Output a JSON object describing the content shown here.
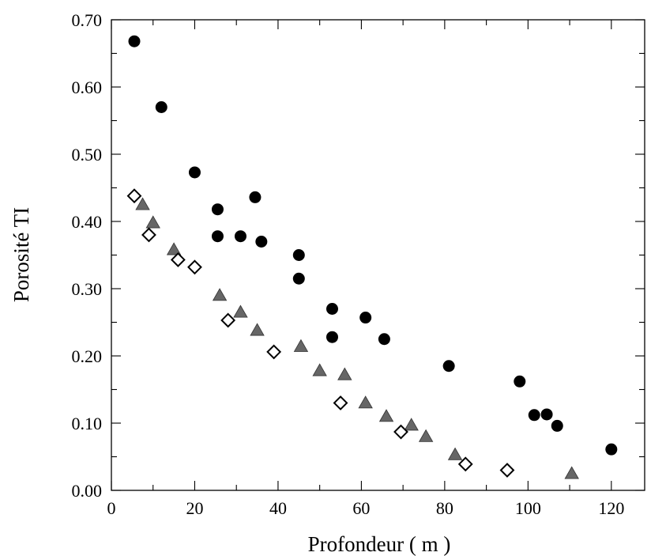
{
  "chart_data": {
    "type": "scatter",
    "title": "",
    "xlabel": "Profondeur ( m )",
    "ylabel": "Porosité TI",
    "xlim": [
      0,
      128
    ],
    "ylim": [
      0,
      0.7
    ],
    "x_ticks": [
      0,
      20,
      40,
      60,
      80,
      100,
      120
    ],
    "x_tick_labels": [
      "0",
      "20",
      "40",
      "60",
      "80",
      "100",
      "120"
    ],
    "y_ticks": [
      0,
      0.1,
      0.2,
      0.3,
      0.4,
      0.5,
      0.6,
      0.7
    ],
    "y_tick_labels": [
      "0.00",
      "0.10",
      "0.20",
      "0.30",
      "0.40",
      "0.50",
      "0.60",
      "0.70"
    ],
    "grid": false,
    "legend": "none",
    "series": [
      {
        "marker": "circle",
        "color": "#000000",
        "points": [
          {
            "x": 5.5,
            "y": 0.668
          },
          {
            "x": 12,
            "y": 0.57
          },
          {
            "x": 20,
            "y": 0.473
          },
          {
            "x": 25.5,
            "y": 0.418
          },
          {
            "x": 25.5,
            "y": 0.378
          },
          {
            "x": 31,
            "y": 0.378
          },
          {
            "x": 34.5,
            "y": 0.436
          },
          {
            "x": 36,
            "y": 0.37
          },
          {
            "x": 45,
            "y": 0.35
          },
          {
            "x": 45,
            "y": 0.315
          },
          {
            "x": 53,
            "y": 0.27
          },
          {
            "x": 53,
            "y": 0.228
          },
          {
            "x": 61,
            "y": 0.257
          },
          {
            "x": 65.5,
            "y": 0.225
          },
          {
            "x": 81,
            "y": 0.185
          },
          {
            "x": 98,
            "y": 0.162
          },
          {
            "x": 101.5,
            "y": 0.112
          },
          {
            "x": 104.5,
            "y": 0.113
          },
          {
            "x": 107,
            "y": 0.096
          },
          {
            "x": 120,
            "y": 0.061
          }
        ]
      },
      {
        "marker": "triangle",
        "color": "#666666",
        "points": [
          {
            "x": 7.5,
            "y": 0.425
          },
          {
            "x": 10,
            "y": 0.398
          },
          {
            "x": 15,
            "y": 0.358
          },
          {
            "x": 26,
            "y": 0.29
          },
          {
            "x": 31,
            "y": 0.265
          },
          {
            "x": 35,
            "y": 0.238
          },
          {
            "x": 45.5,
            "y": 0.214
          },
          {
            "x": 50,
            "y": 0.178
          },
          {
            "x": 56,
            "y": 0.172
          },
          {
            "x": 61,
            "y": 0.13
          },
          {
            "x": 66,
            "y": 0.11
          },
          {
            "x": 72,
            "y": 0.097
          },
          {
            "x": 75.5,
            "y": 0.08
          },
          {
            "x": 82.5,
            "y": 0.053
          },
          {
            "x": 110.5,
            "y": 0.025
          }
        ]
      },
      {
        "marker": "diamond-open",
        "color": "#000000",
        "points": [
          {
            "x": 5.5,
            "y": 0.438
          },
          {
            "x": 9,
            "y": 0.38
          },
          {
            "x": 16,
            "y": 0.343
          },
          {
            "x": 20,
            "y": 0.332
          },
          {
            "x": 28,
            "y": 0.253
          },
          {
            "x": 39,
            "y": 0.206
          },
          {
            "x": 55,
            "y": 0.13
          },
          {
            "x": 69.5,
            "y": 0.087
          },
          {
            "x": 85,
            "y": 0.039
          },
          {
            "x": 95,
            "y": 0.03
          }
        ]
      }
    ]
  }
}
